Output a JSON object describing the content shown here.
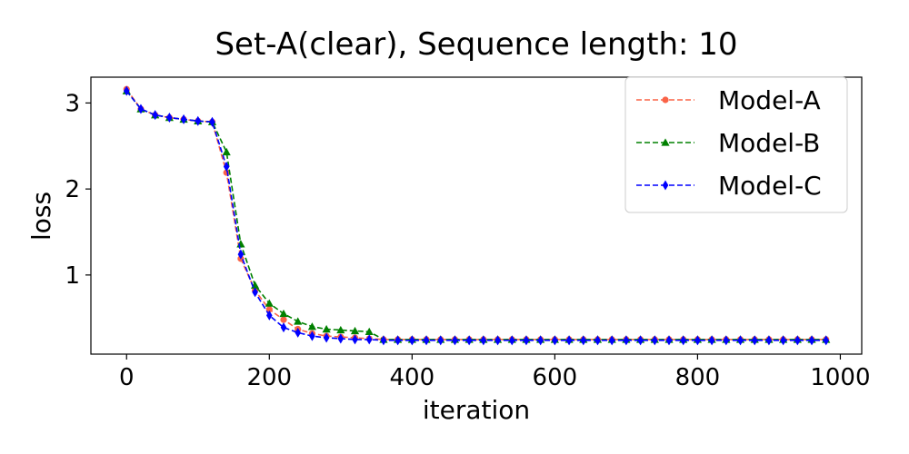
{
  "chart_data": {
    "type": "line",
    "title": "Set-A(clear), Sequence length: 10",
    "xlabel": "iteration",
    "ylabel": "loss",
    "xlim": [
      -50,
      1030
    ],
    "ylim": [
      0.08,
      3.3
    ],
    "xticks": [
      0,
      200,
      400,
      600,
      800,
      1000
    ],
    "yticks": [
      1,
      2,
      3
    ],
    "grid": false,
    "legend_position": "top-right",
    "x": [
      0,
      20,
      40,
      60,
      80,
      100,
      120,
      140,
      160,
      180,
      200,
      220,
      240,
      260,
      280,
      300,
      320,
      340,
      360,
      380,
      400,
      420,
      440,
      460,
      480,
      500,
      520,
      540,
      560,
      580,
      600,
      620,
      640,
      660,
      680,
      700,
      720,
      740,
      760,
      780,
      800,
      820,
      840,
      860,
      880,
      900,
      920,
      940,
      960,
      980
    ],
    "series": [
      {
        "name": "Model-A",
        "color": "#fa6347",
        "marker": "circle",
        "values": [
          3.16,
          2.93,
          2.86,
          2.83,
          2.81,
          2.79,
          2.78,
          2.19,
          1.19,
          0.82,
          0.6,
          0.48,
          0.37,
          0.32,
          0.29,
          0.28,
          0.27,
          0.26,
          0.25,
          0.25,
          0.25,
          0.25,
          0.25,
          0.25,
          0.25,
          0.25,
          0.25,
          0.25,
          0.25,
          0.25,
          0.25,
          0.25,
          0.25,
          0.25,
          0.25,
          0.25,
          0.25,
          0.25,
          0.25,
          0.25,
          0.25,
          0.25,
          0.25,
          0.25,
          0.25,
          0.25,
          0.25,
          0.25,
          0.25,
          0.25
        ]
      },
      {
        "name": "Model-B",
        "color": "#008000",
        "marker": "triangle",
        "values": [
          3.14,
          2.93,
          2.86,
          2.83,
          2.81,
          2.79,
          2.78,
          2.43,
          1.36,
          0.88,
          0.67,
          0.55,
          0.46,
          0.4,
          0.37,
          0.36,
          0.35,
          0.34,
          0.25,
          0.25,
          0.25,
          0.25,
          0.25,
          0.25,
          0.25,
          0.25,
          0.25,
          0.25,
          0.25,
          0.25,
          0.25,
          0.25,
          0.25,
          0.25,
          0.25,
          0.25,
          0.25,
          0.25,
          0.25,
          0.25,
          0.25,
          0.25,
          0.25,
          0.25,
          0.25,
          0.25,
          0.25,
          0.25,
          0.25,
          0.25
        ]
      },
      {
        "name": "Model-C",
        "color": "#0000ff",
        "marker": "diamond",
        "values": [
          3.14,
          2.93,
          2.86,
          2.83,
          2.81,
          2.79,
          2.78,
          2.26,
          1.24,
          0.8,
          0.53,
          0.39,
          0.33,
          0.29,
          0.27,
          0.26,
          0.25,
          0.25,
          0.24,
          0.24,
          0.24,
          0.24,
          0.24,
          0.24,
          0.24,
          0.24,
          0.24,
          0.24,
          0.24,
          0.24,
          0.24,
          0.24,
          0.24,
          0.24,
          0.24,
          0.24,
          0.24,
          0.24,
          0.24,
          0.24,
          0.24,
          0.24,
          0.24,
          0.24,
          0.24,
          0.24,
          0.24,
          0.24,
          0.24,
          0.24
        ]
      }
    ]
  }
}
